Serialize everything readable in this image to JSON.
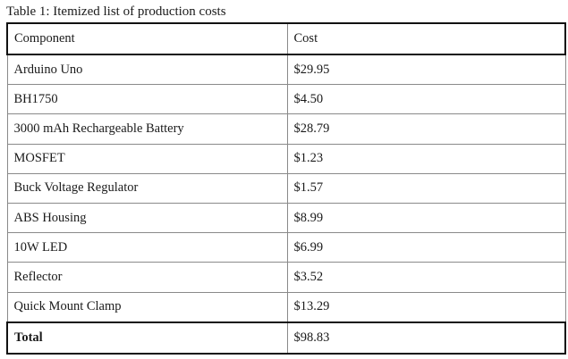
{
  "table": {
    "caption": "Table 1: Itemized list of production costs",
    "headers": {
      "component": "Component",
      "cost": "Cost"
    },
    "rows": [
      {
        "component": "Arduino Uno",
        "cost": "$29.95"
      },
      {
        "component": "BH1750",
        "cost": "$4.50"
      },
      {
        "component": "3000 mAh Rechargeable Battery",
        "cost": "$28.79"
      },
      {
        "component": "MOSFET",
        "cost": "$1.23"
      },
      {
        "component": "Buck Voltage Regulator",
        "cost": "$1.57"
      },
      {
        "component": "ABS Housing",
        "cost": "$8.99"
      },
      {
        "component": "10W LED",
        "cost": "$6.99"
      },
      {
        "component": "Reflector",
        "cost": "$3.52"
      },
      {
        "component": "Quick Mount Clamp",
        "cost": "$13.29"
      }
    ],
    "total": {
      "label": "Total",
      "cost": "$98.83"
    }
  }
}
